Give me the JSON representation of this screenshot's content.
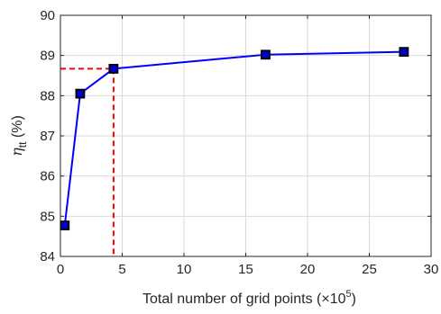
{
  "chart_data": {
    "type": "line",
    "title": "",
    "xlabel": {
      "text": "Total number of grid points (×10",
      "sup": "5",
      "suffix": ")"
    },
    "ylabel": {
      "base": "η",
      "sub": "tt",
      "suffix": " (%)"
    },
    "xlim": [
      0,
      30
    ],
    "ylim": [
      84,
      90
    ],
    "xticks": [
      0,
      5,
      10,
      15,
      20,
      25,
      30
    ],
    "yticks": [
      84,
      85,
      86,
      87,
      88,
      89,
      90
    ],
    "grid": true,
    "series": [
      {
        "x": [
          0.35,
          1.6,
          4.3,
          16.6,
          27.8
        ],
        "y": [
          84.77,
          88.05,
          88.67,
          89.02,
          89.09
        ],
        "line_color": "#0000ff",
        "marker": "square",
        "marker_fill": "#0000cc",
        "marker_edge": "#000000"
      }
    ],
    "reference_lines": {
      "color": "#ff0000",
      "style": "dashed",
      "x": 4.3,
      "y": 88.67
    }
  }
}
